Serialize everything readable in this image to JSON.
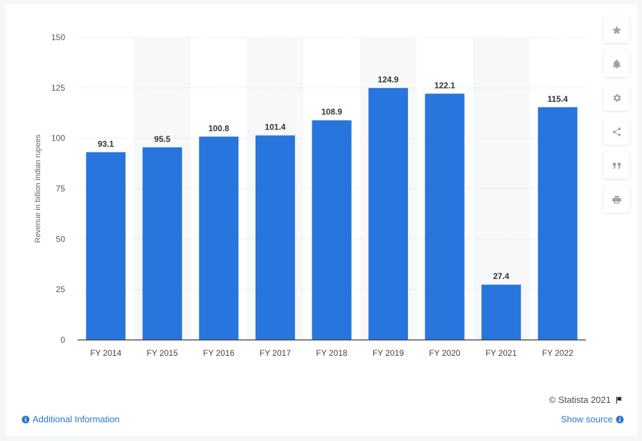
{
  "chart_data": {
    "type": "bar",
    "categories": [
      "FY 2014",
      "FY 2015",
      "FY 2016",
      "FY 2017",
      "FY 2018",
      "FY 2019",
      "FY 2020",
      "FY 2021",
      "FY 2022"
    ],
    "values": [
      93.1,
      95.5,
      100.8,
      101.4,
      108.9,
      124.9,
      122.1,
      27.4,
      115.4
    ],
    "value_labels": [
      "93.1",
      "95.5",
      "100.8",
      "101.4",
      "108.9",
      "124.9",
      "122.1",
      "27.4",
      "115.4"
    ],
    "ylabel": "Revenue in billion Indian rupees",
    "ylim": [
      0,
      150
    ],
    "yticks": [
      0,
      25,
      50,
      75,
      100,
      125,
      150
    ],
    "grid": true,
    "bar_color": "#2876dd"
  },
  "footer": {
    "copyright": "© Statista 2021",
    "additional_info": "Additional Information",
    "show_source": "Show source"
  },
  "toolbar": {
    "icons": [
      "star-icon",
      "bell-icon",
      "gear-icon",
      "share-icon",
      "quote-icon",
      "print-icon"
    ]
  },
  "colors": {
    "accent": "#2876dd",
    "link": "#2b77c9"
  }
}
